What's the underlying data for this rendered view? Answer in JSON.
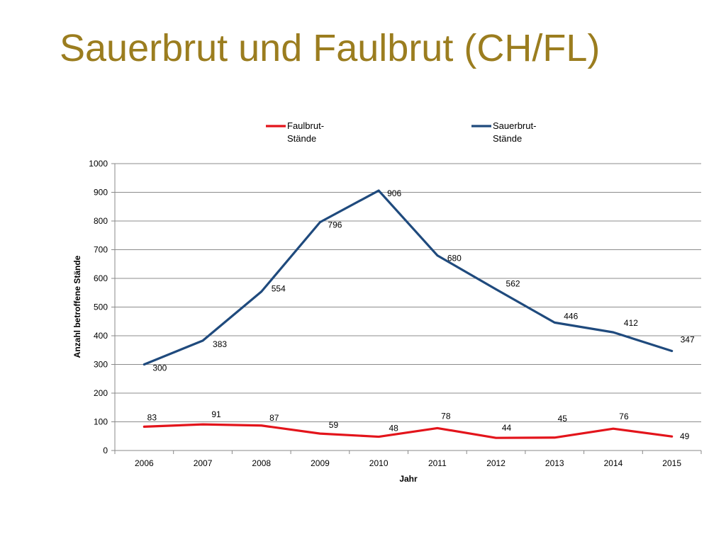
{
  "slide": {
    "title": "Sauerbrut und Faulbrut (CH/FL)"
  },
  "chart_data": {
    "type": "line",
    "title": "",
    "xlabel": "Jahr",
    "ylabel": "Anzahl betroffene Stände",
    "ylim": [
      0,
      1000
    ],
    "yticks": [
      0,
      100,
      200,
      300,
      400,
      500,
      600,
      700,
      800,
      900,
      1000
    ],
    "categories": [
      "2006",
      "2007",
      "2008",
      "2009",
      "2010",
      "2011",
      "2012",
      "2013",
      "2014",
      "2015"
    ],
    "grid": "horizontal",
    "legend_position": "top",
    "series": [
      {
        "name": "Faulbrut-Stände",
        "legend_lines": [
          "Faulbrut-",
          "Stände"
        ],
        "color": "#e3141b",
        "values": [
          83,
          91,
          87,
          59,
          48,
          78,
          44,
          45,
          76,
          49
        ]
      },
      {
        "name": "Sauerbrut-Stände",
        "legend_lines": [
          "Sauerbrut-",
          "Stände"
        ],
        "color": "#1f4a7d",
        "values": [
          300,
          383,
          554,
          796,
          906,
          680,
          562,
          446,
          412,
          347
        ]
      }
    ]
  }
}
